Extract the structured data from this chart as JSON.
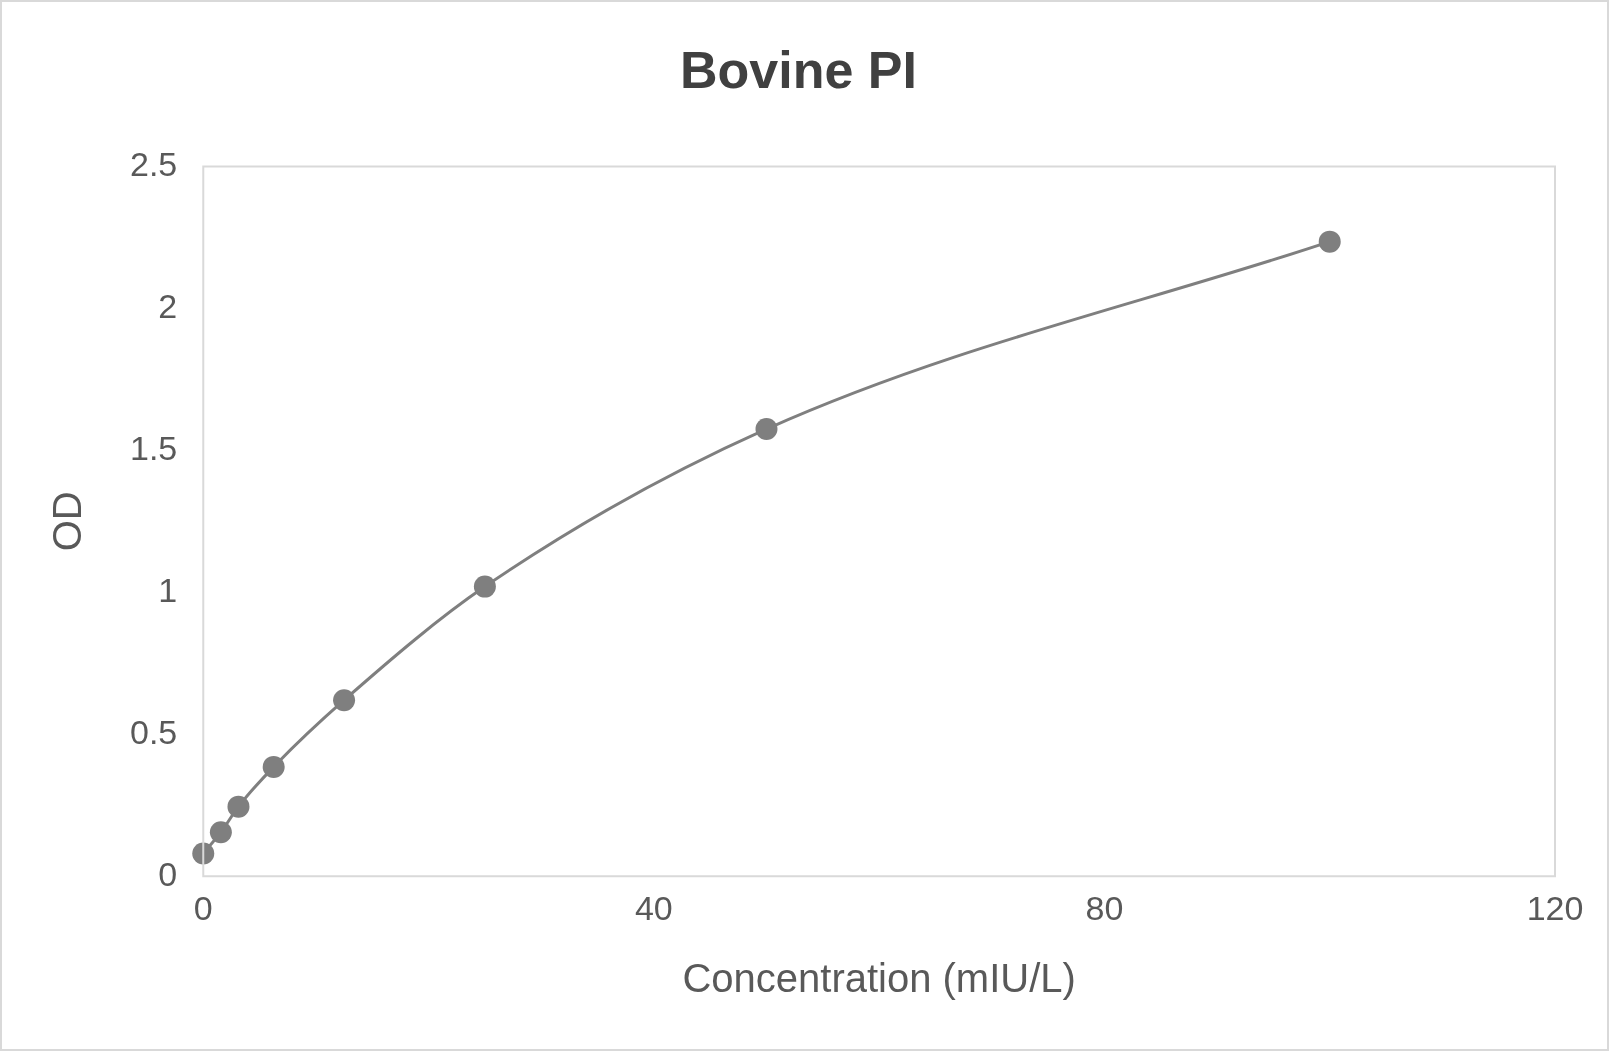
{
  "chart_data": {
    "type": "line",
    "title": "Bovine PI",
    "xlabel": "Concentration (mIU/L)",
    "ylabel": "OD",
    "x": [
      0,
      1.5625,
      3.125,
      6.25,
      12.5,
      25,
      50,
      100
    ],
    "series": [
      {
        "color": "#7f7f7f",
        "values": [
          0.08,
          0.155,
          0.245,
          0.385,
          0.62,
          1.02,
          1.575,
          2.235
        ]
      }
    ],
    "xlim": [
      0,
      120
    ],
    "xticks": [
      0,
      40,
      80,
      120
    ],
    "ylim": [
      0,
      2.5
    ],
    "yticks": [
      0,
      0.5,
      1,
      1.5,
      2,
      2.5
    ],
    "grid": false,
    "legend": false,
    "marker": "circle",
    "line_style": "solid"
  }
}
